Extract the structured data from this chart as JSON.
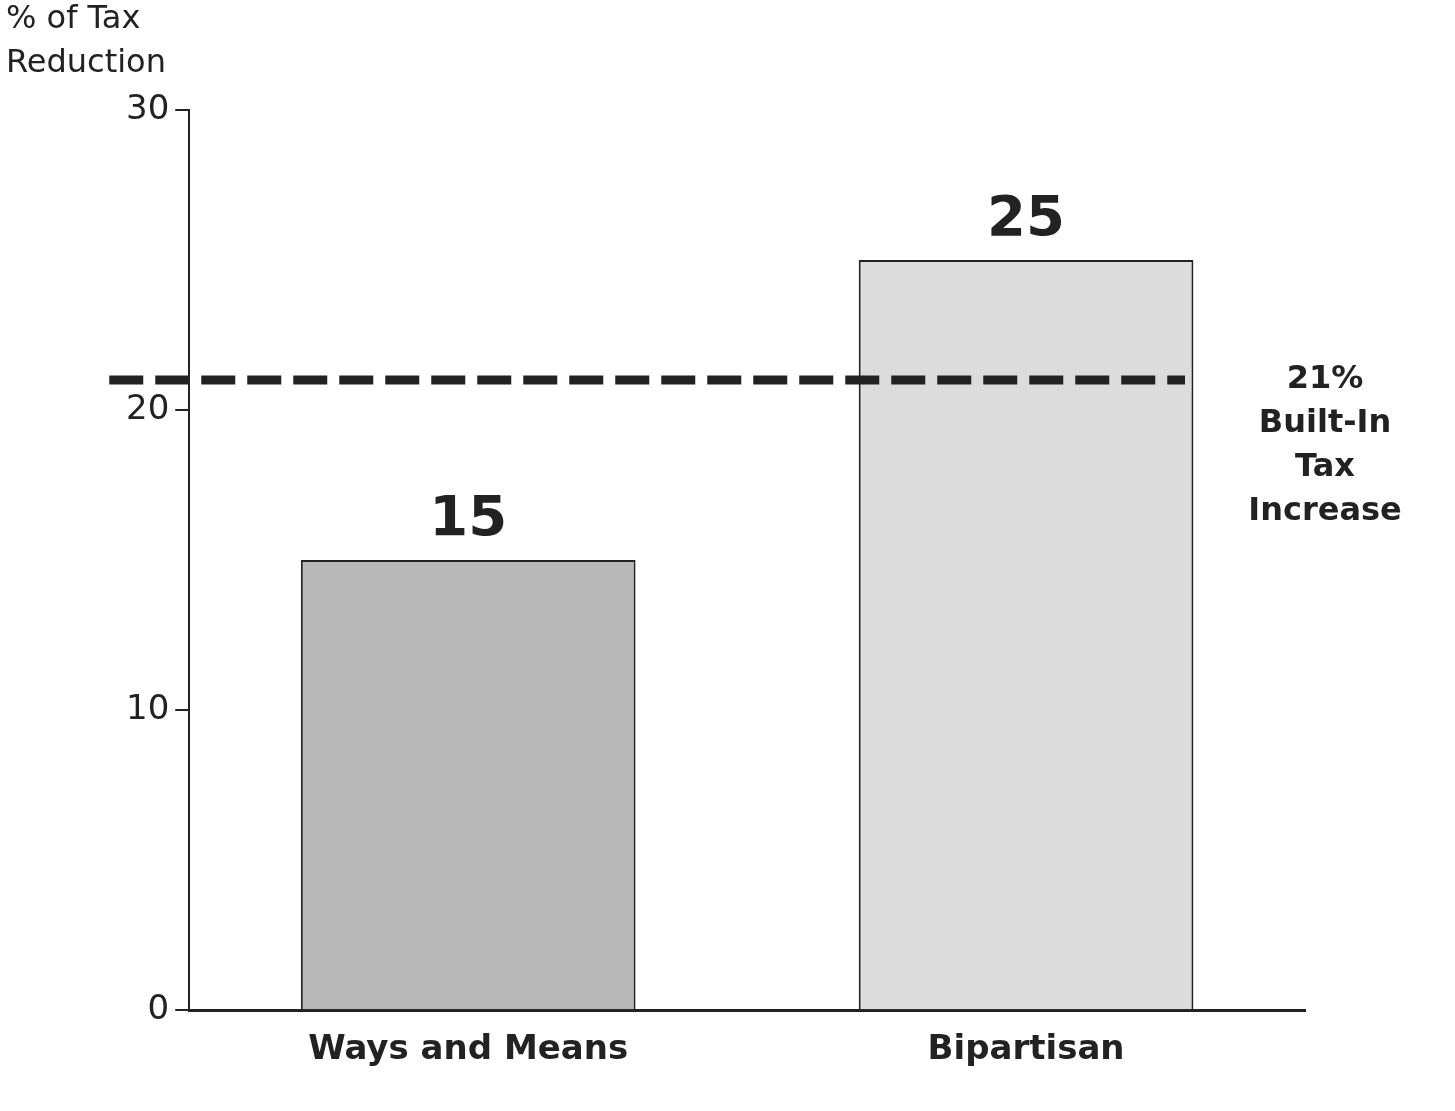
{
  "chart_data": {
    "type": "bar",
    "ylabel": "% of Tax Reduction",
    "categories": [
      "Ways and Means",
      "Bipartisan"
    ],
    "values": [
      15,
      25
    ],
    "colors": [
      "#b8b8b8",
      "#dcdcdc"
    ],
    "ylim": [
      0,
      30
    ],
    "yticks": [
      0,
      10,
      20,
      30
    ],
    "grid": false,
    "legend": false,
    "data_labels": true,
    "ref_lines": [
      {
        "axis": "y",
        "value": 21,
        "label": "21% Built-In Tax Increase",
        "color": "#222222",
        "line_style": "dashed"
      }
    ]
  }
}
